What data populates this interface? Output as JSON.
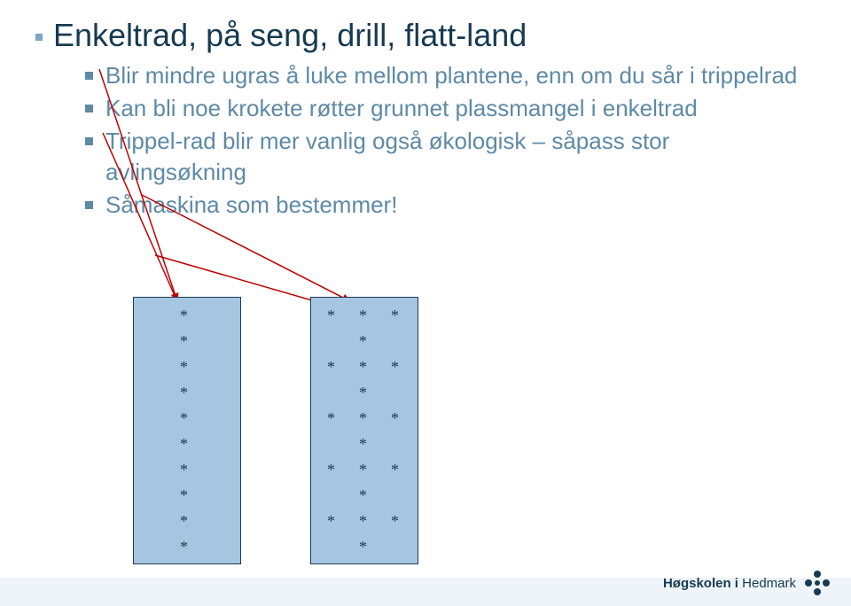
{
  "title": "Enkeltrad, på seng, drill, flatt-land",
  "bullets": [
    "Blir mindre ugras å luke mellom plantene, enn om du sår i trippelrad",
    "Kan bli noe krokete røtter grunnet plassmangel i enkeltrad",
    "Trippel-rad blir mer vanlig også økologisk – såpass stor avlingsøkning",
    "Såmaskina som bestemmer!"
  ],
  "diagram": {
    "panel_bg": "#a6c5e0",
    "panel_border": "#1d3c55",
    "star_glyph": "*",
    "star_color": "#173a52",
    "left_panel_rows": 10,
    "right_panel": {
      "rows": 10,
      "left_col_pattern": [
        1,
        0,
        1,
        0,
        1,
        0,
        1,
        0,
        1,
        0
      ],
      "mid_col_pattern": [
        1,
        1,
        1,
        1,
        1,
        1,
        1,
        1,
        1,
        1
      ],
      "right_col_pattern": [
        1,
        0,
        1,
        0,
        1,
        0,
        1,
        0,
        1,
        0
      ]
    },
    "arrows": {
      "color": "#c00000",
      "width": 1.5
    }
  },
  "logo": {
    "text_strong": "Høgskolen i",
    "text_light": "Hedmark",
    "color": "#173a52"
  },
  "colors": {
    "title": "#173a52",
    "sub": "#5e8aa6",
    "title_bullet": "#7fa6c7",
    "footer_bg": "#eef4f9"
  }
}
